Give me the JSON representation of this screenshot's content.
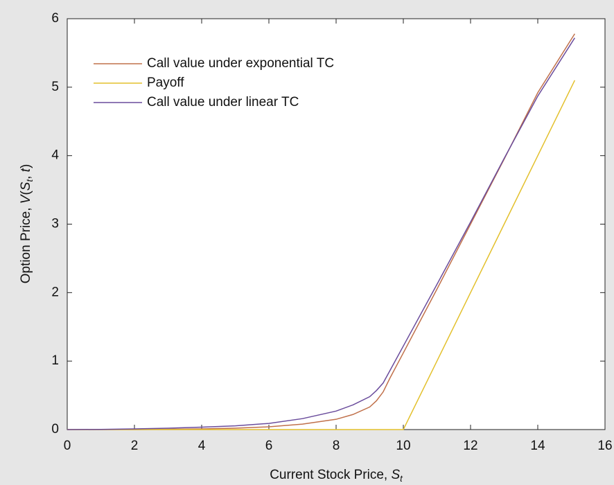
{
  "chart_data": {
    "type": "line",
    "xlabel": [
      "Current Stock Price, ",
      "S",
      "t"
    ],
    "ylabel": [
      "Option Price, ",
      "V",
      "(",
      "S",
      "t",
      ", ",
      "t",
      ")"
    ],
    "x": [
      0,
      1,
      2,
      3,
      4,
      5,
      6,
      7,
      8,
      8.5,
      9,
      9.2,
      9.4,
      9.6,
      10,
      11,
      12,
      13,
      14,
      15.1
    ],
    "series": [
      {
        "name": "Call value under exponential TC",
        "color": "#c0704a",
        "values": [
          0,
          0,
          0,
          0.005,
          0.01,
          0.02,
          0.04,
          0.08,
          0.15,
          0.22,
          0.33,
          0.42,
          0.55,
          0.75,
          1.12,
          2.05,
          3.0,
          3.95,
          4.92,
          5.78
        ]
      },
      {
        "name": "Payoff",
        "color": "#e3c02c",
        "values": [
          0,
          0,
          0,
          0,
          0,
          0,
          0,
          0,
          0,
          0,
          0,
          0,
          0,
          0,
          0,
          1,
          2,
          3,
          4,
          5.1
        ]
      },
      {
        "name": "Call value under linear TC",
        "color": "#6a4c9c",
        "values": [
          0,
          0.003,
          0.01,
          0.02,
          0.035,
          0.055,
          0.09,
          0.16,
          0.27,
          0.36,
          0.48,
          0.57,
          0.68,
          0.86,
          1.22,
          2.12,
          3.03,
          3.96,
          4.87,
          5.72
        ]
      }
    ],
    "xlim": [
      0,
      16
    ],
    "xticks": [
      0,
      2,
      4,
      6,
      8,
      10,
      12,
      14,
      16
    ],
    "ylim": [
      0,
      6
    ],
    "yticks": [
      0,
      1,
      2,
      3,
      4,
      5,
      6
    ],
    "legend": "upper-left",
    "grid": false
  }
}
